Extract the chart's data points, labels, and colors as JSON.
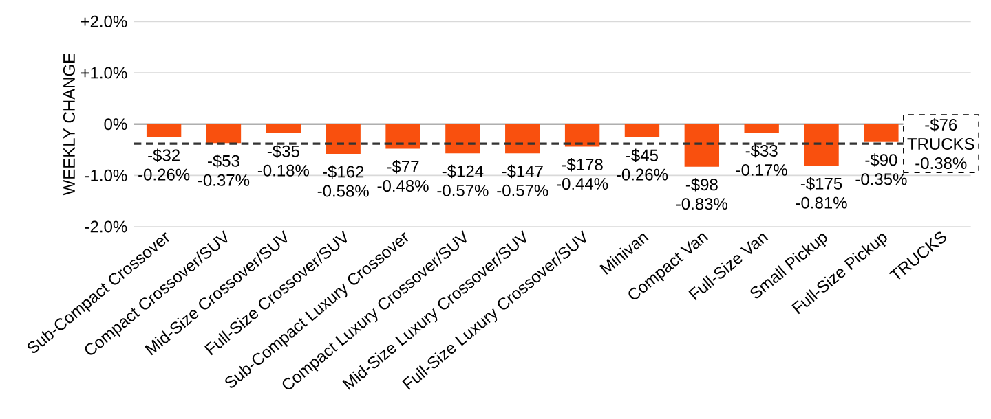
{
  "chart_data": {
    "type": "bar",
    "ylabel": "WEEKLY CHANGE",
    "categories": [
      "Sub-Compact Crossover",
      "Compact Crossover/SUV",
      "Mid-Size Crossover/SUV",
      "Full-Size Crossover/SUV",
      "Sub-Compact Luxury Crossover",
      "Compact Luxury Crossover/SUV",
      "Mid-Size Luxury Crossover/SUV",
      "Full-Size Luxury Crossover/SUV",
      "Minivan",
      "Compact Van",
      "Full-Size Van",
      "Small Pickup",
      "Full-Size Pickup",
      "TRUCKS"
    ],
    "values": [
      -0.26,
      -0.37,
      -0.18,
      -0.58,
      -0.48,
      -0.57,
      -0.57,
      -0.44,
      -0.26,
      -0.83,
      -0.17,
      -0.81,
      -0.35,
      null
    ],
    "value_labels": [
      "-$32 -0.26%",
      "-$53 -0.37%",
      "-$35 -0.18%",
      "-$162 -0.58%",
      "-$77 -0.48%",
      "-$124 -0.57%",
      "-$147 -0.57%",
      "-$178 -0.44%",
      "-$45 -0.26%",
      "-$98 -0.83%",
      "-$33 -0.17%",
      "-$175 -0.81%",
      "-$90 -0.35%",
      null
    ],
    "color": "#f9500e",
    "ylim": [
      -2.0,
      2.0
    ],
    "yticks": [
      {
        "value": 2.0,
        "label": "+2.0%"
      },
      {
        "value": 1.0,
        "label": "+1.0%"
      },
      {
        "value": 0,
        "label": "0%"
      },
      {
        "value": -1.0,
        "label": "-1.0%"
      },
      {
        "value": -2.0,
        "label": "-2.0%"
      }
    ],
    "grid": "y",
    "ref_lines": [
      {
        "axis": "y",
        "value": -0.38,
        "label": "-$76 TRUCKS -0.38%",
        "color": "#333333",
        "line_style": "dashed"
      }
    ]
  }
}
